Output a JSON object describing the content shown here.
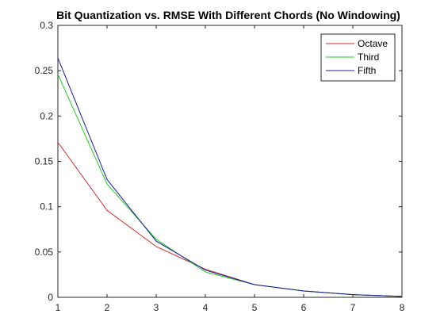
{
  "chart_data": {
    "type": "line",
    "title": "Bit Quantization vs. RMSE With Different Chords (No Windowing)",
    "xlabel": "",
    "ylabel": "",
    "xlim": [
      1,
      8
    ],
    "ylim": [
      0,
      0.3
    ],
    "x": [
      1,
      2,
      3,
      4,
      5,
      6,
      7,
      8
    ],
    "xticks": [
      "1",
      "2",
      "3",
      "4",
      "5",
      "6",
      "7",
      "8"
    ],
    "yticks": [
      "0",
      "0.05",
      "0.1",
      "0.15",
      "0.2",
      "0.25",
      "0.3"
    ],
    "grid": false,
    "legend_position": "top-right",
    "series": [
      {
        "name": "Octave",
        "color": "#d62728",
        "values": [
          0.171,
          0.096,
          0.056,
          0.031,
          0.014,
          0.007,
          0.003,
          0.001
        ]
      },
      {
        "name": "Third",
        "color": "#22cc22",
        "values": [
          0.246,
          0.125,
          0.064,
          0.028,
          0.014,
          0.007,
          0.003,
          0.001
        ]
      },
      {
        "name": "Fifth",
        "color": "#1a1aa6",
        "values": [
          0.264,
          0.13,
          0.062,
          0.03,
          0.014,
          0.007,
          0.003,
          0.001
        ]
      }
    ]
  }
}
